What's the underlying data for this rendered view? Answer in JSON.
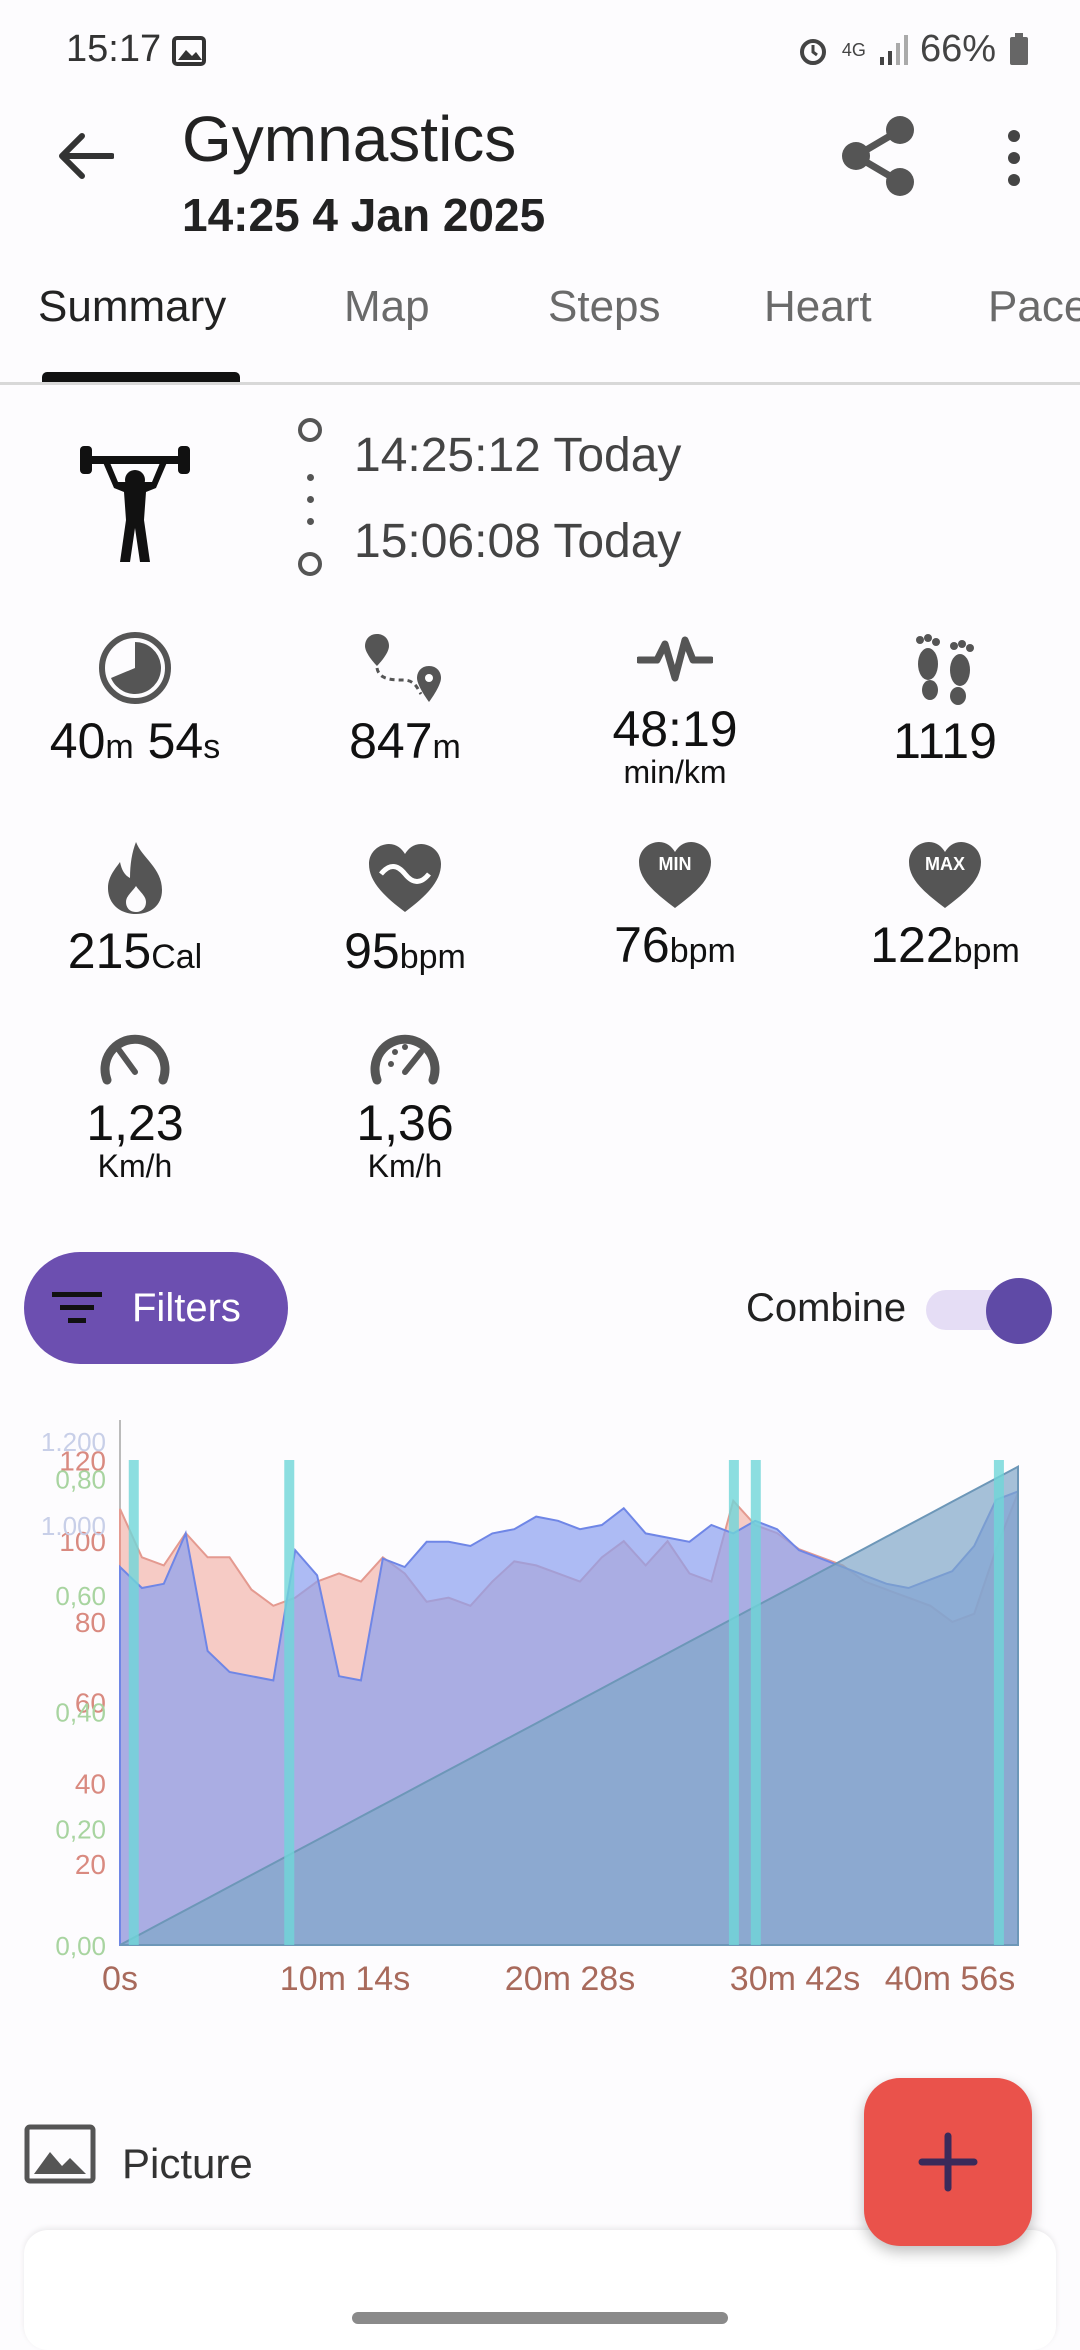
{
  "status_bar": {
    "time": "15:17",
    "battery": "66%",
    "network": "4G"
  },
  "header": {
    "title": "Gymnastics",
    "subtitle": "14:25 4 Jan 2025"
  },
  "tabs": [
    "Summary",
    "Map",
    "Steps",
    "Heart",
    "Pace"
  ],
  "activity": {
    "icon": "weightlifter-icon",
    "start": "14:25:12 Today",
    "end": "15:06:08 Today"
  },
  "stats": {
    "duration": {
      "m": "40",
      "m_unit": "m",
      "s": " 54",
      "s_unit": "s"
    },
    "distance": {
      "value": "847",
      "unit": "m"
    },
    "pace": {
      "value": "48:19",
      "unit": "min/km"
    },
    "steps": {
      "value": "1119"
    },
    "calories": {
      "value": "215",
      "unit": "Cal"
    },
    "avg_hr": {
      "value": "95",
      "unit": "bpm"
    },
    "min_hr": {
      "value": "76",
      "unit": "bpm",
      "badge": "MIN"
    },
    "max_hr": {
      "value": "122",
      "unit": "bpm",
      "badge": "MAX"
    },
    "avg_speed": {
      "value": "1,23",
      "unit": "Km/h"
    },
    "max_speed": {
      "value": "1,36",
      "unit": "Km/h"
    }
  },
  "controls": {
    "filters_label": "Filters",
    "combine_label": "Combine",
    "combine_on": true
  },
  "picture": {
    "label": "Picture"
  },
  "colors": {
    "accent": "#6c4fb0",
    "fab": "#ea524b",
    "heart": "#f2b7ac",
    "steps": "#8a9ff0",
    "distance": "#c9ddd1"
  },
  "chart_data": {
    "type": "area",
    "x_ticks": [
      "0s",
      "10m 14s",
      "20m 28s",
      "30m 42s",
      "40m 56s"
    ],
    "y_axes": [
      {
        "name": "",
        "ticks": [
          "20",
          "40",
          "60",
          "80",
          "100",
          "120"
        ],
        "color": "#d98a80"
      },
      {
        "name": "",
        "ticks": [
          "0,00",
          "0,20",
          "0,40",
          "0,60",
          "0,80"
        ],
        "color": "#a8d4a0"
      },
      {
        "name": "",
        "ticks": [
          "1.000",
          "1.200"
        ],
        "color": "#c8cfe8"
      }
    ],
    "x_minutes": [
      0,
      1,
      2,
      3,
      4,
      5,
      6,
      7,
      8,
      9,
      10,
      11,
      12,
      13,
      14,
      15,
      16,
      17,
      18,
      19,
      20,
      21,
      22,
      23,
      24,
      25,
      26,
      27,
      28,
      29,
      30,
      31,
      32,
      33,
      34,
      35,
      36,
      37,
      38,
      39,
      40,
      41
    ],
    "series": [
      {
        "values": [
          108,
          96,
          94,
          102,
          96,
          96,
          88,
          84,
          86,
          90,
          92,
          90,
          96,
          92,
          85,
          86,
          84,
          90,
          95,
          94,
          92,
          90,
          96,
          100,
          94,
          100,
          92,
          90,
          110,
          104,
          102,
          98,
          96,
          94,
          90,
          88,
          86,
          84,
          80,
          82,
          98,
          112
        ]
      },
      {
        "values": [
          0.0,
          0.02,
          0.04,
          0.06,
          0.08,
          0.1,
          0.12,
          0.14,
          0.16,
          0.18,
          0.2,
          0.22,
          0.24,
          0.26,
          0.28,
          0.3,
          0.32,
          0.34,
          0.36,
          0.38,
          0.4,
          0.42,
          0.44,
          0.46,
          0.48,
          0.5,
          0.52,
          0.54,
          0.56,
          0.58,
          0.6,
          0.62,
          0.64,
          0.66,
          0.68,
          0.7,
          0.72,
          0.74,
          0.76,
          0.78,
          0.8,
          0.82
        ]
      },
      {
        "values": [
          900,
          850,
          860,
          980,
          700,
          650,
          640,
          630,
          940,
          880,
          640,
          630,
          920,
          900,
          960,
          960,
          950,
          980,
          990,
          1020,
          1010,
          990,
          1000,
          1040,
          980,
          970,
          960,
          1000,
          980,
          1010,
          990,
          940,
          920,
          900,
          880,
          860,
          850,
          870,
          890,
          950,
          1060,
          1080
        ]
      }
    ],
    "x_range": [
      0,
      41
    ],
    "y_range": [
      0,
      130
    ]
  }
}
